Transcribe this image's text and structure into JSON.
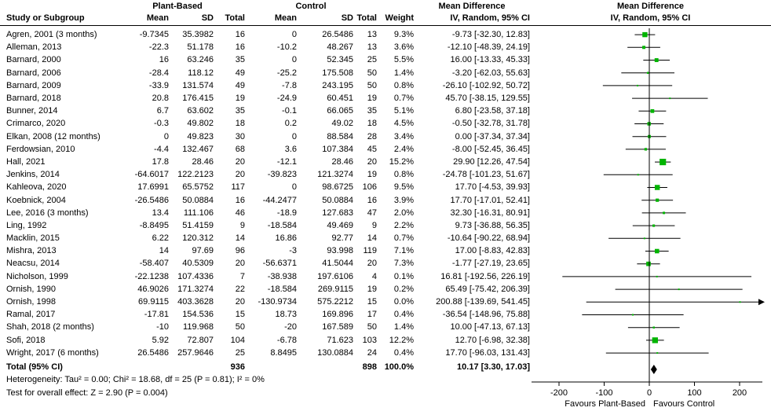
{
  "header": {
    "study_col": "Study or Subgroup",
    "group1": "Plant-Based",
    "group2": "Control",
    "mean": "Mean",
    "sd": "SD",
    "total": "Total",
    "weight": "Weight",
    "md_title": "Mean Difference",
    "md_sub": "IV, Random, 95% CI"
  },
  "footer": {
    "heterogeneity": "Heterogeneity: Tau² = 0.00; Chi² = 18.68, df = 25 (P = 0.81); I² = 0%",
    "overall_effect": "Test for overall effect: Z = 2.90 (P = 0.004)"
  },
  "colors": {
    "marker_green": "#00b400",
    "line": "#000000",
    "text": "#000000"
  },
  "chart_data": {
    "type": "forest (scatter)",
    "title": "Mean Difference",
    "effect_measure": "IV, Random, 95% CI",
    "xlim": [
      -252,
      245
    ],
    "x_ticks": [
      -200,
      -100,
      0,
      100,
      200
    ],
    "axis": {
      "favours_left": "Favours Plant-Based",
      "favours_right": "Favours Control"
    },
    "studies": [
      {
        "name": "Agren, 2001 (3 months)",
        "pb": {
          "mean": "-9.7345",
          "sd": "35.3982",
          "n": "16"
        },
        "c": {
          "mean": "0",
          "sd": "26.5486",
          "n": "13"
        },
        "weight": "9.3%",
        "weight_val": 9.3,
        "ci": "-9.73 [-32.30, 12.83]",
        "est": -9.73,
        "lo": -32.3,
        "hi": 12.83
      },
      {
        "name": "Alleman, 2013",
        "pb": {
          "mean": "-22.3",
          "sd": "51.178",
          "n": "16"
        },
        "c": {
          "mean": "-10.2",
          "sd": "48.267",
          "n": "13"
        },
        "weight": "3.6%",
        "weight_val": 3.6,
        "ci": "-12.10 [-48.39, 24.19]",
        "est": -12.1,
        "lo": -48.39,
        "hi": 24.19
      },
      {
        "name": "Barnard, 2000",
        "pb": {
          "mean": "16",
          "sd": "63.246",
          "n": "35"
        },
        "c": {
          "mean": "0",
          "sd": "52.345",
          "n": "25"
        },
        "weight": "5.5%",
        "weight_val": 5.5,
        "ci": "16.00 [-13.33, 45.33]",
        "est": 16.0,
        "lo": -13.33,
        "hi": 45.33
      },
      {
        "name": "Barnard, 2006",
        "pb": {
          "mean": "-28.4",
          "sd": "118.12",
          "n": "49"
        },
        "c": {
          "mean": "-25.2",
          "sd": "175.508",
          "n": "50"
        },
        "weight": "1.4%",
        "weight_val": 1.4,
        "ci": "-3.20 [-62.03, 55.63]",
        "est": -3.2,
        "lo": -62.03,
        "hi": 55.63
      },
      {
        "name": "Barnard, 2009",
        "pb": {
          "mean": "-33.9",
          "sd": "131.574",
          "n": "49"
        },
        "c": {
          "mean": "-7.8",
          "sd": "243.195",
          "n": "50"
        },
        "weight": "0.8%",
        "weight_val": 0.8,
        "ci": "-26.10 [-102.92, 50.72]",
        "est": -26.1,
        "lo": -102.92,
        "hi": 50.72
      },
      {
        "name": "Barnard, 2018",
        "pb": {
          "mean": "20.8",
          "sd": "176.415",
          "n": "19"
        },
        "c": {
          "mean": "-24.9",
          "sd": "60.451",
          "n": "19"
        },
        "weight": "0.7%",
        "weight_val": 0.7,
        "ci": "45.70 [-38.15, 129.55]",
        "est": 45.7,
        "lo": -38.15,
        "hi": 129.55
      },
      {
        "name": "Bunner, 2014",
        "pb": {
          "mean": "6.7",
          "sd": "63.602",
          "n": "35"
        },
        "c": {
          "mean": "-0.1",
          "sd": "66.065",
          "n": "35"
        },
        "weight": "5.1%",
        "weight_val": 5.1,
        "ci": "6.80 [-23.58, 37.18]",
        "est": 6.8,
        "lo": -23.58,
        "hi": 37.18
      },
      {
        "name": "Crimarco, 2020",
        "pb": {
          "mean": "-0.3",
          "sd": "49.802",
          "n": "18"
        },
        "c": {
          "mean": "0.2",
          "sd": "49.02",
          "n": "18"
        },
        "weight": "4.5%",
        "weight_val": 4.5,
        "ci": "-0.50 [-32.78, 31.78]",
        "est": -0.5,
        "lo": -32.78,
        "hi": 31.78
      },
      {
        "name": "Elkan, 2008 (12 months)",
        "pb": {
          "mean": "0",
          "sd": "49.823",
          "n": "30"
        },
        "c": {
          "mean": "0",
          "sd": "88.584",
          "n": "28"
        },
        "weight": "3.4%",
        "weight_val": 3.4,
        "ci": "0.00 [-37.34, 37.34]",
        "est": 0.0,
        "lo": -37.34,
        "hi": 37.34
      },
      {
        "name": "Ferdowsian, 2010",
        "pb": {
          "mean": "-4.4",
          "sd": "132.467",
          "n": "68"
        },
        "c": {
          "mean": "3.6",
          "sd": "107.384",
          "n": "45"
        },
        "weight": "2.4%",
        "weight_val": 2.4,
        "ci": "-8.00 [-52.45, 36.45]",
        "est": -8.0,
        "lo": -52.45,
        "hi": 36.45
      },
      {
        "name": "Hall, 2021",
        "pb": {
          "mean": "17.8",
          "sd": "28.46",
          "n": "20"
        },
        "c": {
          "mean": "-12.1",
          "sd": "28.46",
          "n": "20"
        },
        "weight": "15.2%",
        "weight_val": 15.2,
        "ci": "29.90 [12.26, 47.54]",
        "est": 29.9,
        "lo": 12.26,
        "hi": 47.54
      },
      {
        "name": "Jenkins, 2014",
        "pb": {
          "mean": "-64.6017",
          "sd": "122.2123",
          "n": "20"
        },
        "c": {
          "mean": "-39.823",
          "sd": "121.3274",
          "n": "19"
        },
        "weight": "0.8%",
        "weight_val": 0.8,
        "ci": "-24.78 [-101.23, 51.67]",
        "est": -24.78,
        "lo": -101.23,
        "hi": 51.67
      },
      {
        "name": "Kahleova, 2020",
        "pb": {
          "mean": "17.6991",
          "sd": "65.5752",
          "n": "117"
        },
        "c": {
          "mean": "0",
          "sd": "98.6725",
          "n": "106"
        },
        "weight": "9.5%",
        "weight_val": 9.5,
        "ci": "17.70 [-4.53, 39.93]",
        "est": 17.7,
        "lo": -4.53,
        "hi": 39.93
      },
      {
        "name": "Koebnick, 2004",
        "pb": {
          "mean": "-26.5486",
          "sd": "50.0884",
          "n": "16"
        },
        "c": {
          "mean": "-44.2477",
          "sd": "50.0884",
          "n": "16"
        },
        "weight": "3.9%",
        "weight_val": 3.9,
        "ci": "17.70 [-17.01, 52.41]",
        "est": 17.7,
        "lo": -17.01,
        "hi": 52.41
      },
      {
        "name": "Lee, 2016 (3 months)",
        "pb": {
          "mean": "13.4",
          "sd": "111.106",
          "n": "46"
        },
        "c": {
          "mean": "-18.9",
          "sd": "127.683",
          "n": "47"
        },
        "weight": "2.0%",
        "weight_val": 2.0,
        "ci": "32.30 [-16.31, 80.91]",
        "est": 32.3,
        "lo": -16.31,
        "hi": 80.91
      },
      {
        "name": "Ling, 1992",
        "pb": {
          "mean": "-8.8495",
          "sd": "51.4159",
          "n": "9"
        },
        "c": {
          "mean": "-18.584",
          "sd": "49.469",
          "n": "9"
        },
        "weight": "2.2%",
        "weight_val": 2.2,
        "ci": "9.73 [-36.88, 56.35]",
        "est": 9.73,
        "lo": -36.88,
        "hi": 56.35
      },
      {
        "name": "Macklin, 2015",
        "pb": {
          "mean": "6.22",
          "sd": "120.312",
          "n": "14"
        },
        "c": {
          "mean": "16.86",
          "sd": "92.77",
          "n": "14"
        },
        "weight": "0.7%",
        "weight_val": 0.7,
        "ci": "-10.64 [-90.22, 68.94]",
        "est": -10.64,
        "lo": -90.22,
        "hi": 68.94
      },
      {
        "name": "Mishra, 2013",
        "pb": {
          "mean": "14",
          "sd": "97.69",
          "n": "96"
        },
        "c": {
          "mean": "-3",
          "sd": "93.998",
          "n": "119"
        },
        "weight": "7.1%",
        "weight_val": 7.1,
        "ci": "17.00 [-8.83, 42.83]",
        "est": 17.0,
        "lo": -8.83,
        "hi": 42.83
      },
      {
        "name": "Neacsu, 2014",
        "pb": {
          "mean": "-58.407",
          "sd": "40.5309",
          "n": "20"
        },
        "c": {
          "mean": "-56.6371",
          "sd": "41.5044",
          "n": "20"
        },
        "weight": "7.3%",
        "weight_val": 7.3,
        "ci": "-1.77 [-27.19, 23.65]",
        "est": -1.77,
        "lo": -27.19,
        "hi": 23.65
      },
      {
        "name": "Nicholson, 1999",
        "pb": {
          "mean": "-22.1238",
          "sd": "107.4336",
          "n": "7"
        },
        "c": {
          "mean": "-38.938",
          "sd": "197.6106",
          "n": "4"
        },
        "weight": "0.1%",
        "weight_val": 0.1,
        "ci": "16.81 [-192.56, 226.19]",
        "est": 16.81,
        "lo": -192.56,
        "hi": 226.19
      },
      {
        "name": "Ornish, 1990",
        "pb": {
          "mean": "46.9026",
          "sd": "171.3274",
          "n": "22"
        },
        "c": {
          "mean": "-18.584",
          "sd": "269.9115",
          "n": "19"
        },
        "weight": "0.2%",
        "weight_val": 0.2,
        "ci": "65.49 [-75.42, 206.39]",
        "est": 65.49,
        "lo": -75.42,
        "hi": 206.39
      },
      {
        "name": "Ornish, 1998",
        "pb": {
          "mean": "69.9115",
          "sd": "403.3628",
          "n": "20"
        },
        "c": {
          "mean": "-130.9734",
          "sd": "575.2212",
          "n": "15"
        },
        "weight": "0.0%",
        "weight_val": 0.0,
        "ci": "200.88 [-139.69, 541.45]",
        "est": 200.88,
        "lo": -139.69,
        "hi": 541.45
      },
      {
        "name": "Ramal, 2017",
        "pb": {
          "mean": "-17.81",
          "sd": "154.536",
          "n": "15"
        },
        "c": {
          "mean": "18.73",
          "sd": "169.896",
          "n": "17"
        },
        "weight": "0.4%",
        "weight_val": 0.4,
        "ci": "-36.54 [-148.96, 75.88]",
        "est": -36.54,
        "lo": -148.96,
        "hi": 75.88
      },
      {
        "name": "Shah, 2018 (2 months)",
        "pb": {
          "mean": "-10",
          "sd": "119.968",
          "n": "50"
        },
        "c": {
          "mean": "-20",
          "sd": "167.589",
          "n": "50"
        },
        "weight": "1.4%",
        "weight_val": 1.4,
        "ci": "10.00 [-47.13, 67.13]",
        "est": 10.0,
        "lo": -47.13,
        "hi": 67.13
      },
      {
        "name": "Sofi, 2018",
        "pb": {
          "mean": "5.92",
          "sd": "72.807",
          "n": "104"
        },
        "c": {
          "mean": "-6.78",
          "sd": "71.623",
          "n": "103"
        },
        "weight": "12.2%",
        "weight_val": 12.2,
        "ci": "12.70 [-6.98, 32.38]",
        "est": 12.7,
        "lo": -6.98,
        "hi": 32.38
      },
      {
        "name": "Wright, 2017 (6 months)",
        "pb": {
          "mean": "26.5486",
          "sd": "257.9646",
          "n": "25"
        },
        "c": {
          "mean": "8.8495",
          "sd": "130.0884",
          "n": "24"
        },
        "weight": "0.4%",
        "weight_val": 0.4,
        "ci": "17.70 [-96.03, 131.43]",
        "est": 17.7,
        "lo": -96.03,
        "hi": 131.43
      }
    ],
    "total": {
      "label": "Total (95% CI)",
      "pb_total": "936",
      "c_total": "898",
      "weight": "100.0%",
      "ci": "10.17 [3.30, 17.03]",
      "est": 10.17,
      "lo": 3.3,
      "hi": 17.03
    }
  }
}
